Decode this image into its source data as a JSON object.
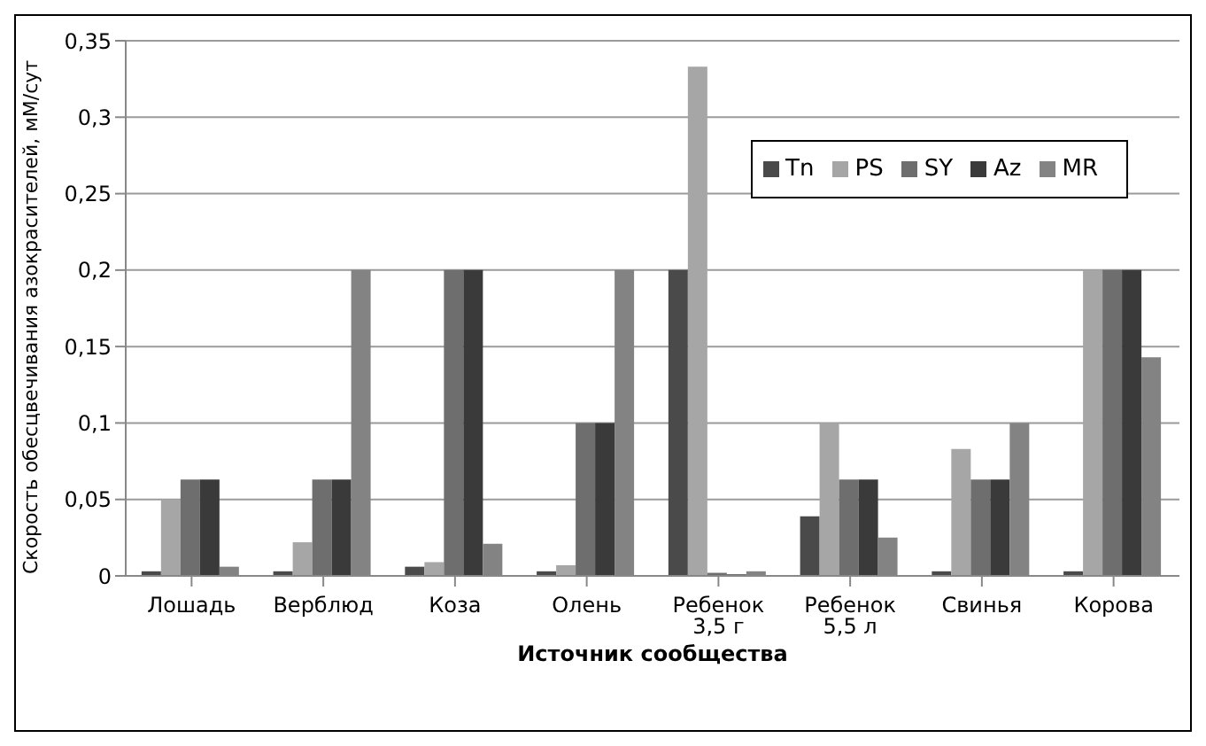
{
  "chart_data": {
    "type": "bar",
    "xlabel": "Источник сообщества",
    "ylabel": "Скорость обесцвечивания азокрасителей,  мМ/сут",
    "categories": [
      "Лошадь",
      "Верблюд",
      "Коза",
      "Олень",
      "Ребенок 3,5 г",
      "Ребенок 5,5 л",
      "Свинья",
      "Корова"
    ],
    "series": [
      {
        "name": "Tn",
        "color": "#4a4a4a",
        "values": [
          0.003,
          0.003,
          0.006,
          0.003,
          0.2,
          0.039,
          0.003,
          0.003
        ]
      },
      {
        "name": "PS",
        "color": "#a6a6a6",
        "values": [
          0.05,
          0.022,
          0.009,
          0.007,
          0.333,
          0.1,
          0.083,
          0.2
        ]
      },
      {
        "name": "SY",
        "color": "#6e6e6e",
        "values": [
          0.063,
          0.063,
          0.2,
          0.1,
          0.002,
          0.063,
          0.063,
          0.2
        ]
      },
      {
        "name": "Az",
        "color": "#3a3a3a",
        "values": [
          0.063,
          0.063,
          0.2,
          0.1,
          0.001,
          0.063,
          0.063,
          0.2
        ]
      },
      {
        "name": "MR",
        "color": "#838383",
        "values": [
          0.006,
          0.2,
          0.021,
          0.2,
          0.003,
          0.025,
          0.1,
          0.143
        ]
      }
    ],
    "ylim": [
      0,
      0.35
    ],
    "yticks": [
      {
        "value": 0,
        "label": "0"
      },
      {
        "value": 0.05,
        "label": "0,05"
      },
      {
        "value": 0.1,
        "label": "0,1"
      },
      {
        "value": 0.15,
        "label": "0,15"
      },
      {
        "value": 0.2,
        "label": "0,2"
      },
      {
        "value": 0.25,
        "label": "0,25"
      },
      {
        "value": 0.3,
        "label": "0,3"
      },
      {
        "value": 0.35,
        "label": "0,35"
      }
    ],
    "grid": "y",
    "legend": "top right"
  }
}
